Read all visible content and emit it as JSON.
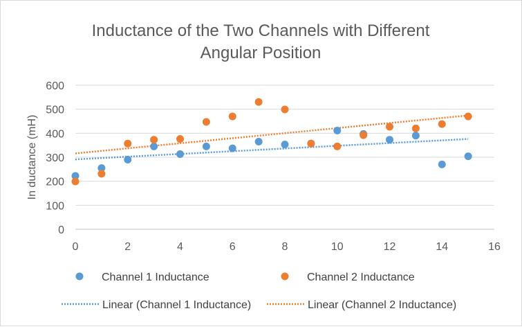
{
  "chart_data": {
    "type": "scatter",
    "title_line1": "Inductance of the Two Channels with Different",
    "title_line2": "Angular Position",
    "xlabel": "",
    "ylabel": "In ductance (mH)",
    "xlim": [
      0,
      16
    ],
    "ylim": [
      0,
      600
    ],
    "x_ticks": [
      "0",
      "2",
      "4",
      "6",
      "8",
      "10",
      "12",
      "14",
      "16"
    ],
    "y_ticks": [
      "0",
      "100",
      "200",
      "300",
      "400",
      "500",
      "600"
    ],
    "grid": "horizontal",
    "legend_position": "bottom",
    "series": [
      {
        "name": "Channel 1 Inductance",
        "color": "#5b9bd5",
        "x": [
          0,
          1,
          2,
          3,
          4,
          5,
          6,
          7,
          8,
          9,
          10,
          11,
          12,
          13,
          14,
          15
        ],
        "y": [
          222,
          255,
          290,
          345,
          313,
          345,
          337,
          365,
          353,
          357,
          411,
          397,
          373,
          390,
          270,
          304
        ]
      },
      {
        "name": "Channel 2 Inductance",
        "color": "#ed7d31",
        "x": [
          0,
          1,
          2,
          3,
          4,
          5,
          6,
          7,
          8,
          9,
          10,
          11,
          12,
          13,
          14,
          15
        ],
        "y": [
          199,
          231,
          357,
          373,
          376,
          447,
          470,
          530,
          499,
          357,
          345,
          392,
          427,
          420,
          438,
          470
        ]
      }
    ],
    "trendlines": [
      {
        "name": "Linear  (Channel 1 Inductance)",
        "color": "#5b9bd5",
        "x": [
          0,
          15
        ],
        "y": [
          291,
          376
        ]
      },
      {
        "name": "Linear  (Channel 2 Inductance)",
        "color": "#ed7d31",
        "x": [
          0,
          15
        ],
        "y": [
          316,
          474
        ]
      }
    ]
  }
}
